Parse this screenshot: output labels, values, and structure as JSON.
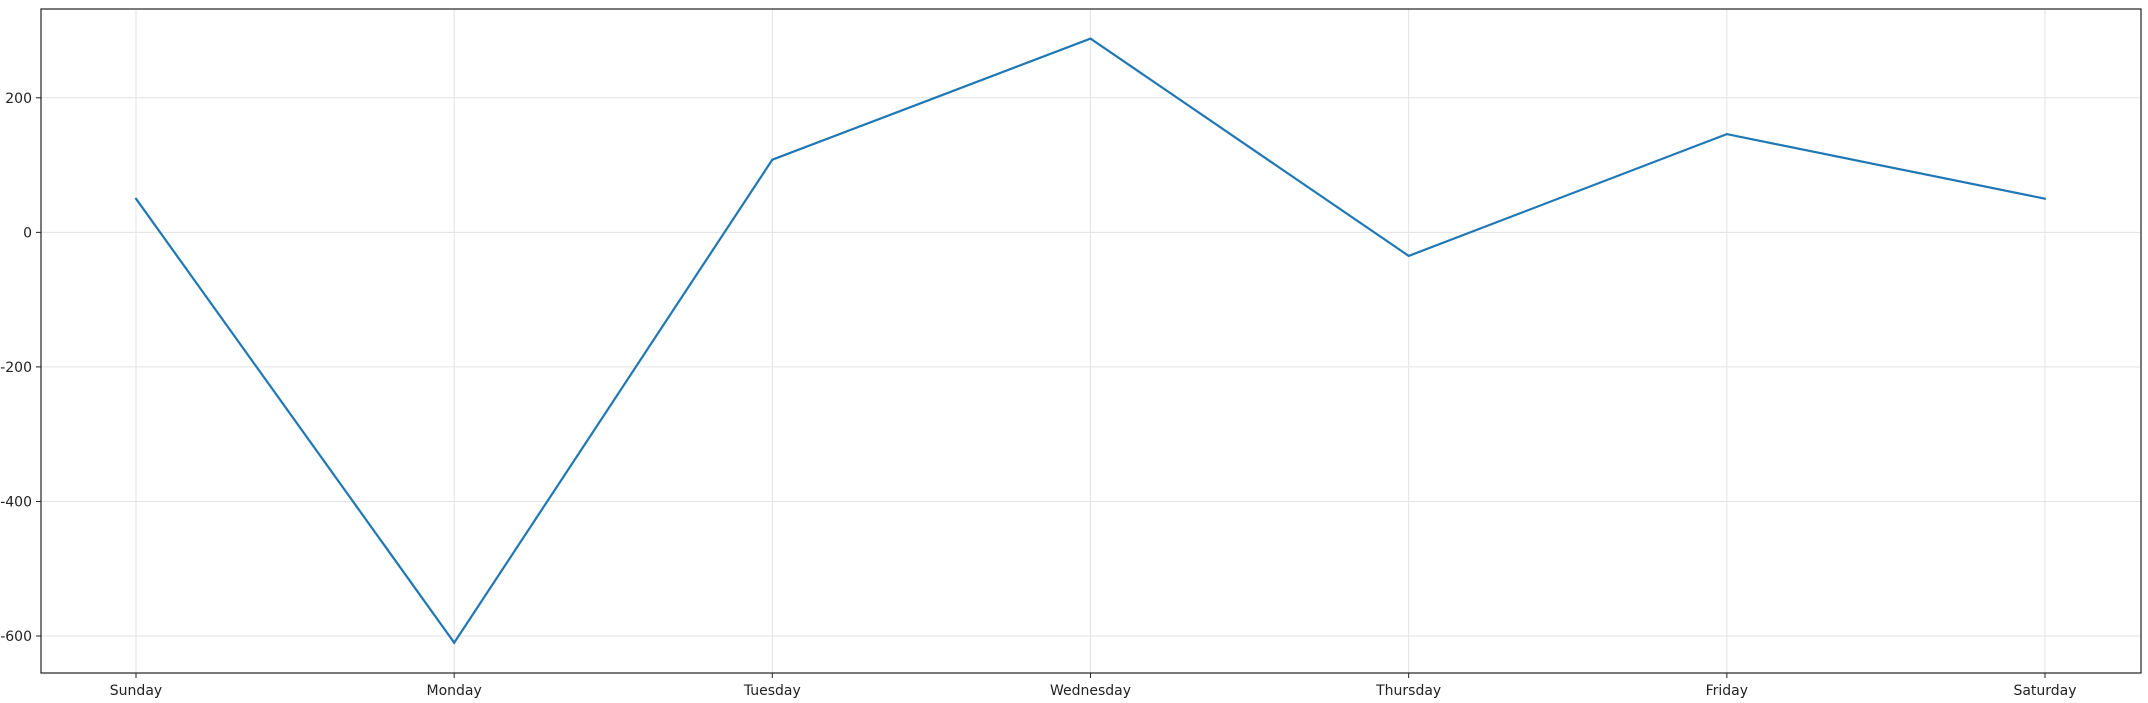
{
  "chart_data": {
    "type": "line",
    "title": "",
    "xlabel": "",
    "ylabel": "",
    "categories": [
      "Sunday",
      "Monday",
      "Tuesday",
      "Wednesday",
      "Thursday",
      "Friday",
      "Saturday"
    ],
    "series": [
      {
        "values": [
          50,
          -610,
          108,
          288,
          -35,
          146,
          50
        ],
        "color": "#1f77b4"
      }
    ],
    "yticks": [
      200,
      0,
      -200,
      -400,
      -600
    ],
    "ytick_labels": [
      "200",
      "0",
      "-200",
      "-400",
      "-600"
    ],
    "ylim": [
      -655,
      332
    ],
    "grid": true,
    "legend": "none"
  }
}
